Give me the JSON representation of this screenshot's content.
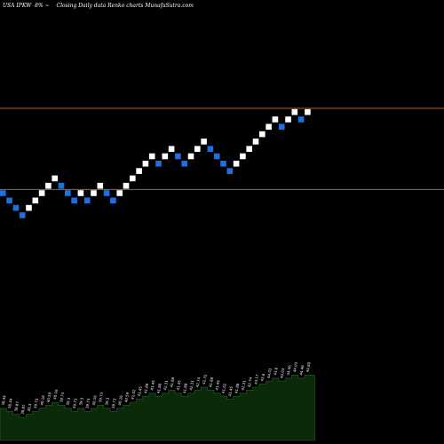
{
  "header": {
    "ticker": "USA IPKW",
    "change": "8% ~",
    "desc": "Closing Daily data  Renko  charts MunafaSutra.com"
  },
  "colors": {
    "background": "#000000",
    "up_brick": "#ffffff",
    "down_brick": "#1e6fe0",
    "level_line": "#b8621b",
    "volume_fill": "#0a2a0a",
    "volume_edge": "#2f5a2f"
  },
  "chart_data": {
    "type": "renko",
    "brick_dir": [
      "down",
      "down",
      "down",
      "down",
      "up",
      "up",
      "up",
      "up",
      "up",
      "down",
      "down",
      "down",
      "up",
      "down",
      "up",
      "up",
      "down",
      "down",
      "up",
      "up",
      "up",
      "up",
      "up",
      "up",
      "down",
      "up",
      "up",
      "down",
      "down",
      "up",
      "up",
      "up",
      "down",
      "down",
      "down",
      "down",
      "up",
      "up",
      "up",
      "up",
      "up",
      "up",
      "up",
      "down",
      "up",
      "up",
      "down",
      "up"
    ],
    "brick_level": [
      0,
      -1,
      -2,
      -3,
      -2,
      -1,
      0,
      1,
      2,
      1,
      0,
      -1,
      0,
      -1,
      0,
      1,
      0,
      -1,
      0,
      1,
      2,
      3,
      4,
      5,
      4,
      5,
      6,
      5,
      4,
      5,
      6,
      7,
      6,
      5,
      4,
      3,
      4,
      5,
      6,
      7,
      8,
      9,
      10,
      9,
      10,
      11,
      10,
      11
    ],
    "levels": [
      11.5,
      0.5
    ],
    "volume_labels": [
      "38.44",
      "38.44",
      "38.87",
      "38.87",
      "39.3",
      "39.73",
      "40.16",
      "40.59",
      "40.16",
      "39.73",
      "39.3",
      "39.73",
      "39.3",
      "39.73",
      "40.16",
      "39.73",
      "39.3",
      "39.73",
      "40.16",
      "40.59",
      "41.02",
      "41.45",
      "41.88",
      "41.45",
      "41.88",
      "42.31",
      "41.88",
      "41.45",
      "41.88",
      "42.31",
      "42.74",
      "42.31",
      "41.88",
      "41.45",
      "41.02",
      "41.45",
      "41.88",
      "42.31",
      "42.74",
      "43.17",
      "43.6",
      "44.03",
      "43.6",
      "44.03",
      "44.46",
      "44.03",
      "44.46",
      "44.89"
    ]
  }
}
